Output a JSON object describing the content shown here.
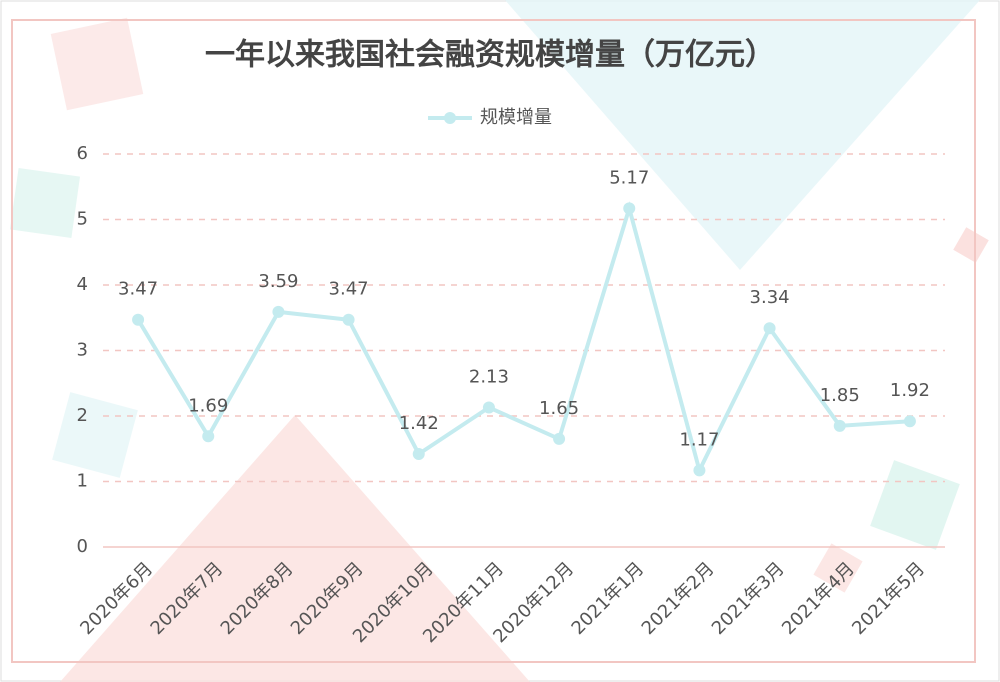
{
  "chart_data": {
    "type": "line",
    "title": "一年以来我国社会融资规模增量（万亿元）",
    "categories": [
      "2020年6月",
      "2020年7月",
      "2020年8月",
      "2020年9月",
      "2020年10月",
      "2020年11月",
      "2020年12月",
      "2021年1月",
      "2021年2月",
      "2021年3月",
      "2021年4月",
      "2021年5月"
    ],
    "series": [
      {
        "name": "规模增量",
        "color": "#c4ebef",
        "values": [
          3.47,
          1.69,
          3.59,
          3.47,
          1.42,
          2.13,
          1.65,
          5.17,
          1.17,
          3.34,
          1.85,
          1.92
        ]
      }
    ],
    "ylim": [
      0,
      6
    ],
    "yticks": [
      0,
      1,
      2,
      3,
      4,
      5,
      6
    ],
    "grid": true,
    "legend": "top"
  }
}
